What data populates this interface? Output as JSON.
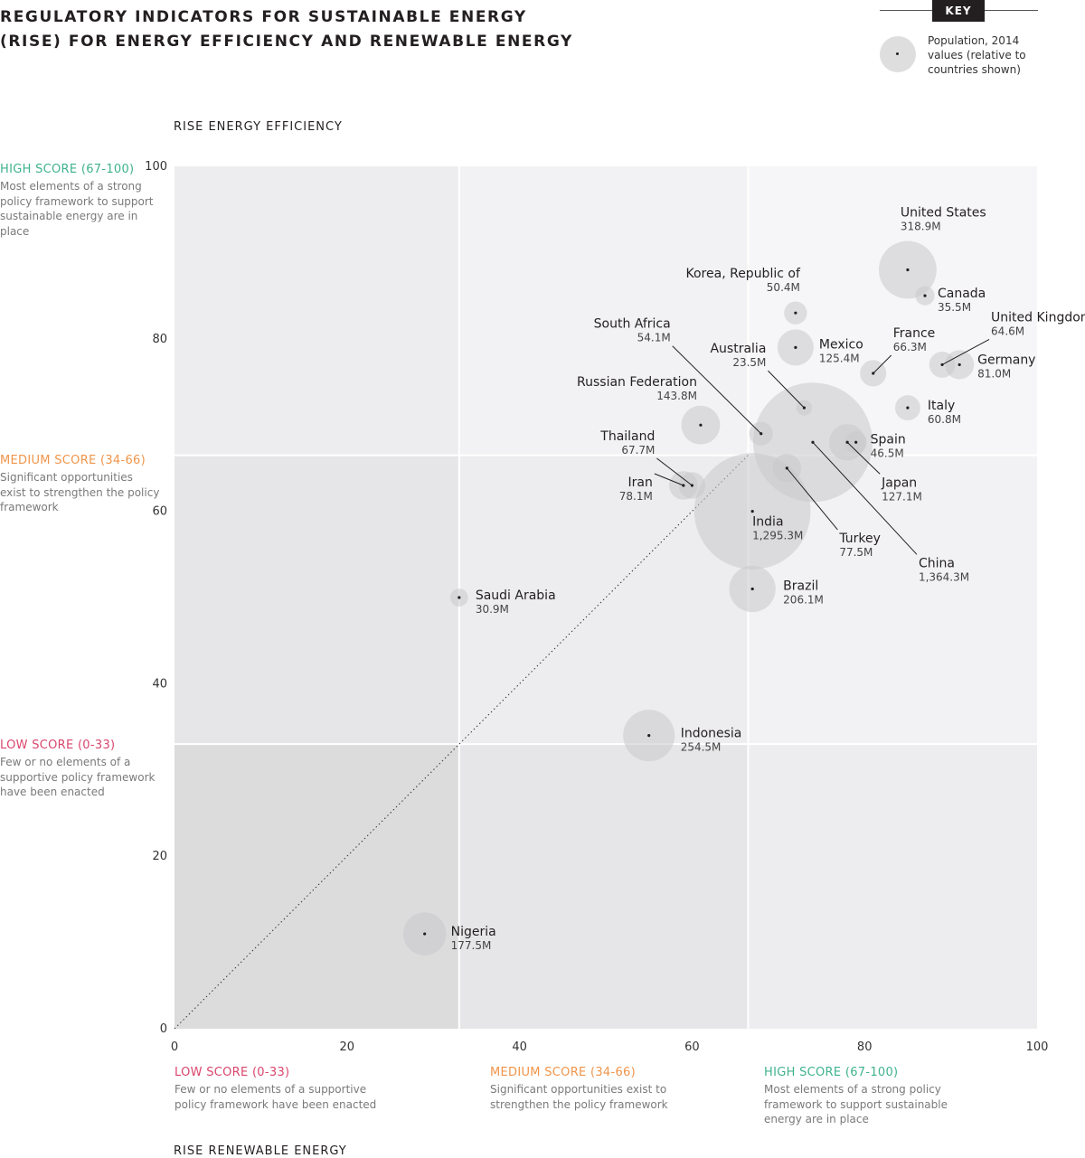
{
  "title": {
    "line1": "REGULATORY INDICATORS FOR SUSTAINABLE ENERGY",
    "line2": "(RISE) FOR ENERGY EFFICIENCY AND RENEWABLE ENERGY"
  },
  "key": {
    "label": "KEY",
    "line1": "Population, 2014",
    "line2": "values (relative to",
    "line3": "countries shown)"
  },
  "zones": {
    "high": {
      "label": "HIGH SCORE (67-100)",
      "desc": "Most elements of a strong policy framework to support sustainable energy are in place",
      "color": "#3fb28f"
    },
    "medium": {
      "label": "MEDIUM SCORE (34-66)",
      "desc": "Significant opportunities exist to strengthen the policy framework",
      "color": "#f0954a"
    },
    "low": {
      "label": "LOW SCORE (0-33)",
      "desc": "Few or no elements of a supportive policy framework have been enacted",
      "color": "#d9466d"
    }
  },
  "chart_data": {
    "type": "scatter",
    "xlabel": "RISE RENEWABLE ENERGY",
    "ylabel": "RISE ENERGY EFFICIENCY",
    "xlim": [
      0,
      100
    ],
    "ylim": [
      0,
      100
    ],
    "x_ticks": [
      0,
      20,
      40,
      60,
      80,
      100
    ],
    "y_ticks": [
      0,
      20,
      40,
      60,
      80,
      100
    ],
    "zone_thresholds": [
      33,
      66.5
    ],
    "size_label": "Population, 2014",
    "points": [
      {
        "name": "United States",
        "pop": "318.9M",
        "population": 318.9,
        "x": 85,
        "y": 88
      },
      {
        "name": "Canada",
        "pop": "35.5M",
        "population": 35.5,
        "x": 87,
        "y": 85
      },
      {
        "name": "Korea, Republic of",
        "pop": "50.4M",
        "population": 50.4,
        "x": 72,
        "y": 83
      },
      {
        "name": "Mexico",
        "pop": "125.4M",
        "population": 125.4,
        "x": 72,
        "y": 79
      },
      {
        "name": "South Africa",
        "pop": "54.1M",
        "population": 54.1,
        "x": 68,
        "y": 69
      },
      {
        "name": "Australia",
        "pop": "23.5M",
        "population": 23.5,
        "x": 73,
        "y": 72
      },
      {
        "name": "France",
        "pop": "66.3M",
        "population": 66.3,
        "x": 81,
        "y": 76
      },
      {
        "name": "United Kingdom",
        "pop": "64.6M",
        "population": 64.6,
        "x": 89,
        "y": 77
      },
      {
        "name": "Germany",
        "pop": "81.0M",
        "population": 81.0,
        "x": 91,
        "y": 77
      },
      {
        "name": "Italy",
        "pop": "60.8M",
        "population": 60.8,
        "x": 85,
        "y": 72
      },
      {
        "name": "Russian Federation",
        "pop": "143.8M",
        "population": 143.8,
        "x": 61,
        "y": 70
      },
      {
        "name": "Spain",
        "pop": "46.5M",
        "population": 46.5,
        "x": 79,
        "y": 68
      },
      {
        "name": "Japan",
        "pop": "127.1M",
        "population": 127.1,
        "x": 78,
        "y": 68
      },
      {
        "name": "China",
        "pop": "1,364.3M",
        "population": 1364.3,
        "x": 74,
        "y": 68
      },
      {
        "name": "Thailand",
        "pop": "67.7M",
        "population": 67.7,
        "x": 60,
        "y": 63
      },
      {
        "name": "Iran",
        "pop": "78.1M",
        "population": 78.1,
        "x": 59,
        "y": 63
      },
      {
        "name": "Turkey",
        "pop": "77.5M",
        "population": 77.5,
        "x": 71,
        "y": 65
      },
      {
        "name": "India",
        "pop": "1,295.3M",
        "population": 1295.3,
        "x": 67,
        "y": 60
      },
      {
        "name": "Brazil",
        "pop": "206.1M",
        "population": 206.1,
        "x": 67,
        "y": 51
      },
      {
        "name": "Saudi Arabia",
        "pop": "30.9M",
        "population": 30.9,
        "x": 33,
        "y": 50
      },
      {
        "name": "Indonesia",
        "pop": "254.5M",
        "population": 254.5,
        "x": 55,
        "y": 34
      },
      {
        "name": "Nigeria",
        "pop": "177.5M",
        "population": 177.5,
        "x": 29,
        "y": 11
      }
    ]
  }
}
